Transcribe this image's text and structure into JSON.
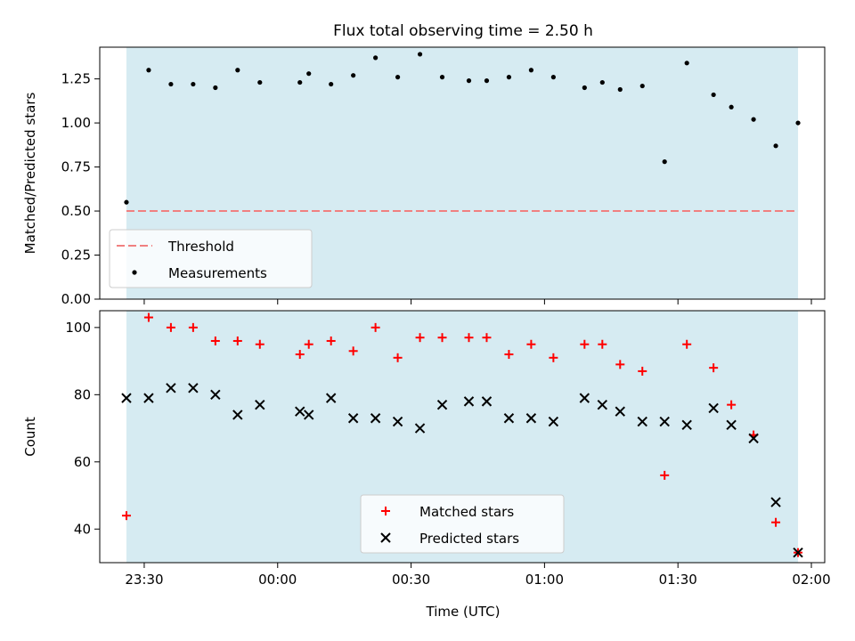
{
  "figure_title": "Flux total observing time = 2.50 h",
  "chart_data": [
    {
      "type": "scatter",
      "title": "Flux total observing time = 2.50 h",
      "xlabel": "",
      "ylabel": "Matched/Predicted stars",
      "ylim": [
        0.0,
        1.43
      ],
      "yticks": [
        "0.00",
        "0.25",
        "0.50",
        "0.75",
        "1.00",
        "1.25"
      ],
      "shaded_span": {
        "start": "23:26",
        "end": "01:57",
        "color": "#add8e6"
      },
      "threshold": {
        "name": "Threshold",
        "value": 0.5,
        "color": "#f08080"
      },
      "legend_position": "lower-left",
      "series": [
        {
          "name": "Measurements",
          "color": "#000000",
          "x": [
            "23:26",
            "23:31",
            "23:36",
            "23:41",
            "23:46",
            "23:51",
            "23:56",
            "00:05",
            "00:07",
            "00:12",
            "00:17",
            "00:22",
            "00:27",
            "00:32",
            "00:37",
            "00:43",
            "00:47",
            "00:52",
            "00:57",
            "01:02",
            "01:09",
            "01:13",
            "01:17",
            "01:22",
            "01:27",
            "01:32",
            "01:38",
            "01:42",
            "01:47",
            "01:52",
            "01:57"
          ],
          "y": [
            0.55,
            1.3,
            1.22,
            1.22,
            1.2,
            1.3,
            1.23,
            1.23,
            1.28,
            1.22,
            1.27,
            1.37,
            1.26,
            1.39,
            1.26,
            1.24,
            1.24,
            1.26,
            1.3,
            1.26,
            1.2,
            1.23,
            1.19,
            1.21,
            0.78,
            1.34,
            1.16,
            1.09,
            1.02,
            0.87,
            1.0
          ]
        }
      ]
    },
    {
      "type": "scatter",
      "title": "",
      "xlabel": "Time (UTC)",
      "ylabel": "Count",
      "ylim": [
        30,
        105
      ],
      "yticks": [
        "40",
        "60",
        "80",
        "100"
      ],
      "xticks": [
        "23:30",
        "00:00",
        "00:30",
        "01:00",
        "01:30",
        "02:00"
      ],
      "shaded_span": {
        "start": "23:26",
        "end": "01:57",
        "color": "#add8e6"
      },
      "legend_position": "lower-center",
      "series": [
        {
          "name": "Matched stars",
          "marker": "plus",
          "color": "#ff0000",
          "x": [
            "23:26",
            "23:31",
            "23:36",
            "23:41",
            "23:46",
            "23:51",
            "23:56",
            "00:05",
            "00:07",
            "00:12",
            "00:17",
            "00:22",
            "00:27",
            "00:32",
            "00:37",
            "00:43",
            "00:47",
            "00:52",
            "00:57",
            "01:02",
            "01:09",
            "01:13",
            "01:17",
            "01:22",
            "01:27",
            "01:32",
            "01:38",
            "01:42",
            "01:47",
            "01:52",
            "01:57"
          ],
          "y": [
            44,
            103,
            100,
            100,
            96,
            96,
            95,
            92,
            95,
            96,
            93,
            100,
            91,
            97,
            97,
            97,
            97,
            92,
            95,
            91,
            95,
            95,
            89,
            87,
            56,
            95,
            88,
            77,
            68,
            42,
            33
          ]
        },
        {
          "name": "Predicted stars",
          "marker": "x",
          "color": "#000000",
          "x": [
            "23:26",
            "23:31",
            "23:36",
            "23:41",
            "23:46",
            "23:51",
            "23:56",
            "00:05",
            "00:07",
            "00:12",
            "00:17",
            "00:22",
            "00:27",
            "00:32",
            "00:37",
            "00:43",
            "00:47",
            "00:52",
            "00:57",
            "01:02",
            "01:09",
            "01:13",
            "01:17",
            "01:22",
            "01:27",
            "01:32",
            "01:38",
            "01:42",
            "01:47",
            "01:52",
            "01:57"
          ],
          "y": [
            79,
            79,
            82,
            82,
            80,
            74,
            77,
            75,
            74,
            79,
            73,
            73,
            72,
            70,
            77,
            78,
            78,
            73,
            73,
            72,
            79,
            77,
            75,
            72,
            72,
            71,
            76,
            71,
            67,
            48,
            33
          ]
        }
      ]
    }
  ]
}
